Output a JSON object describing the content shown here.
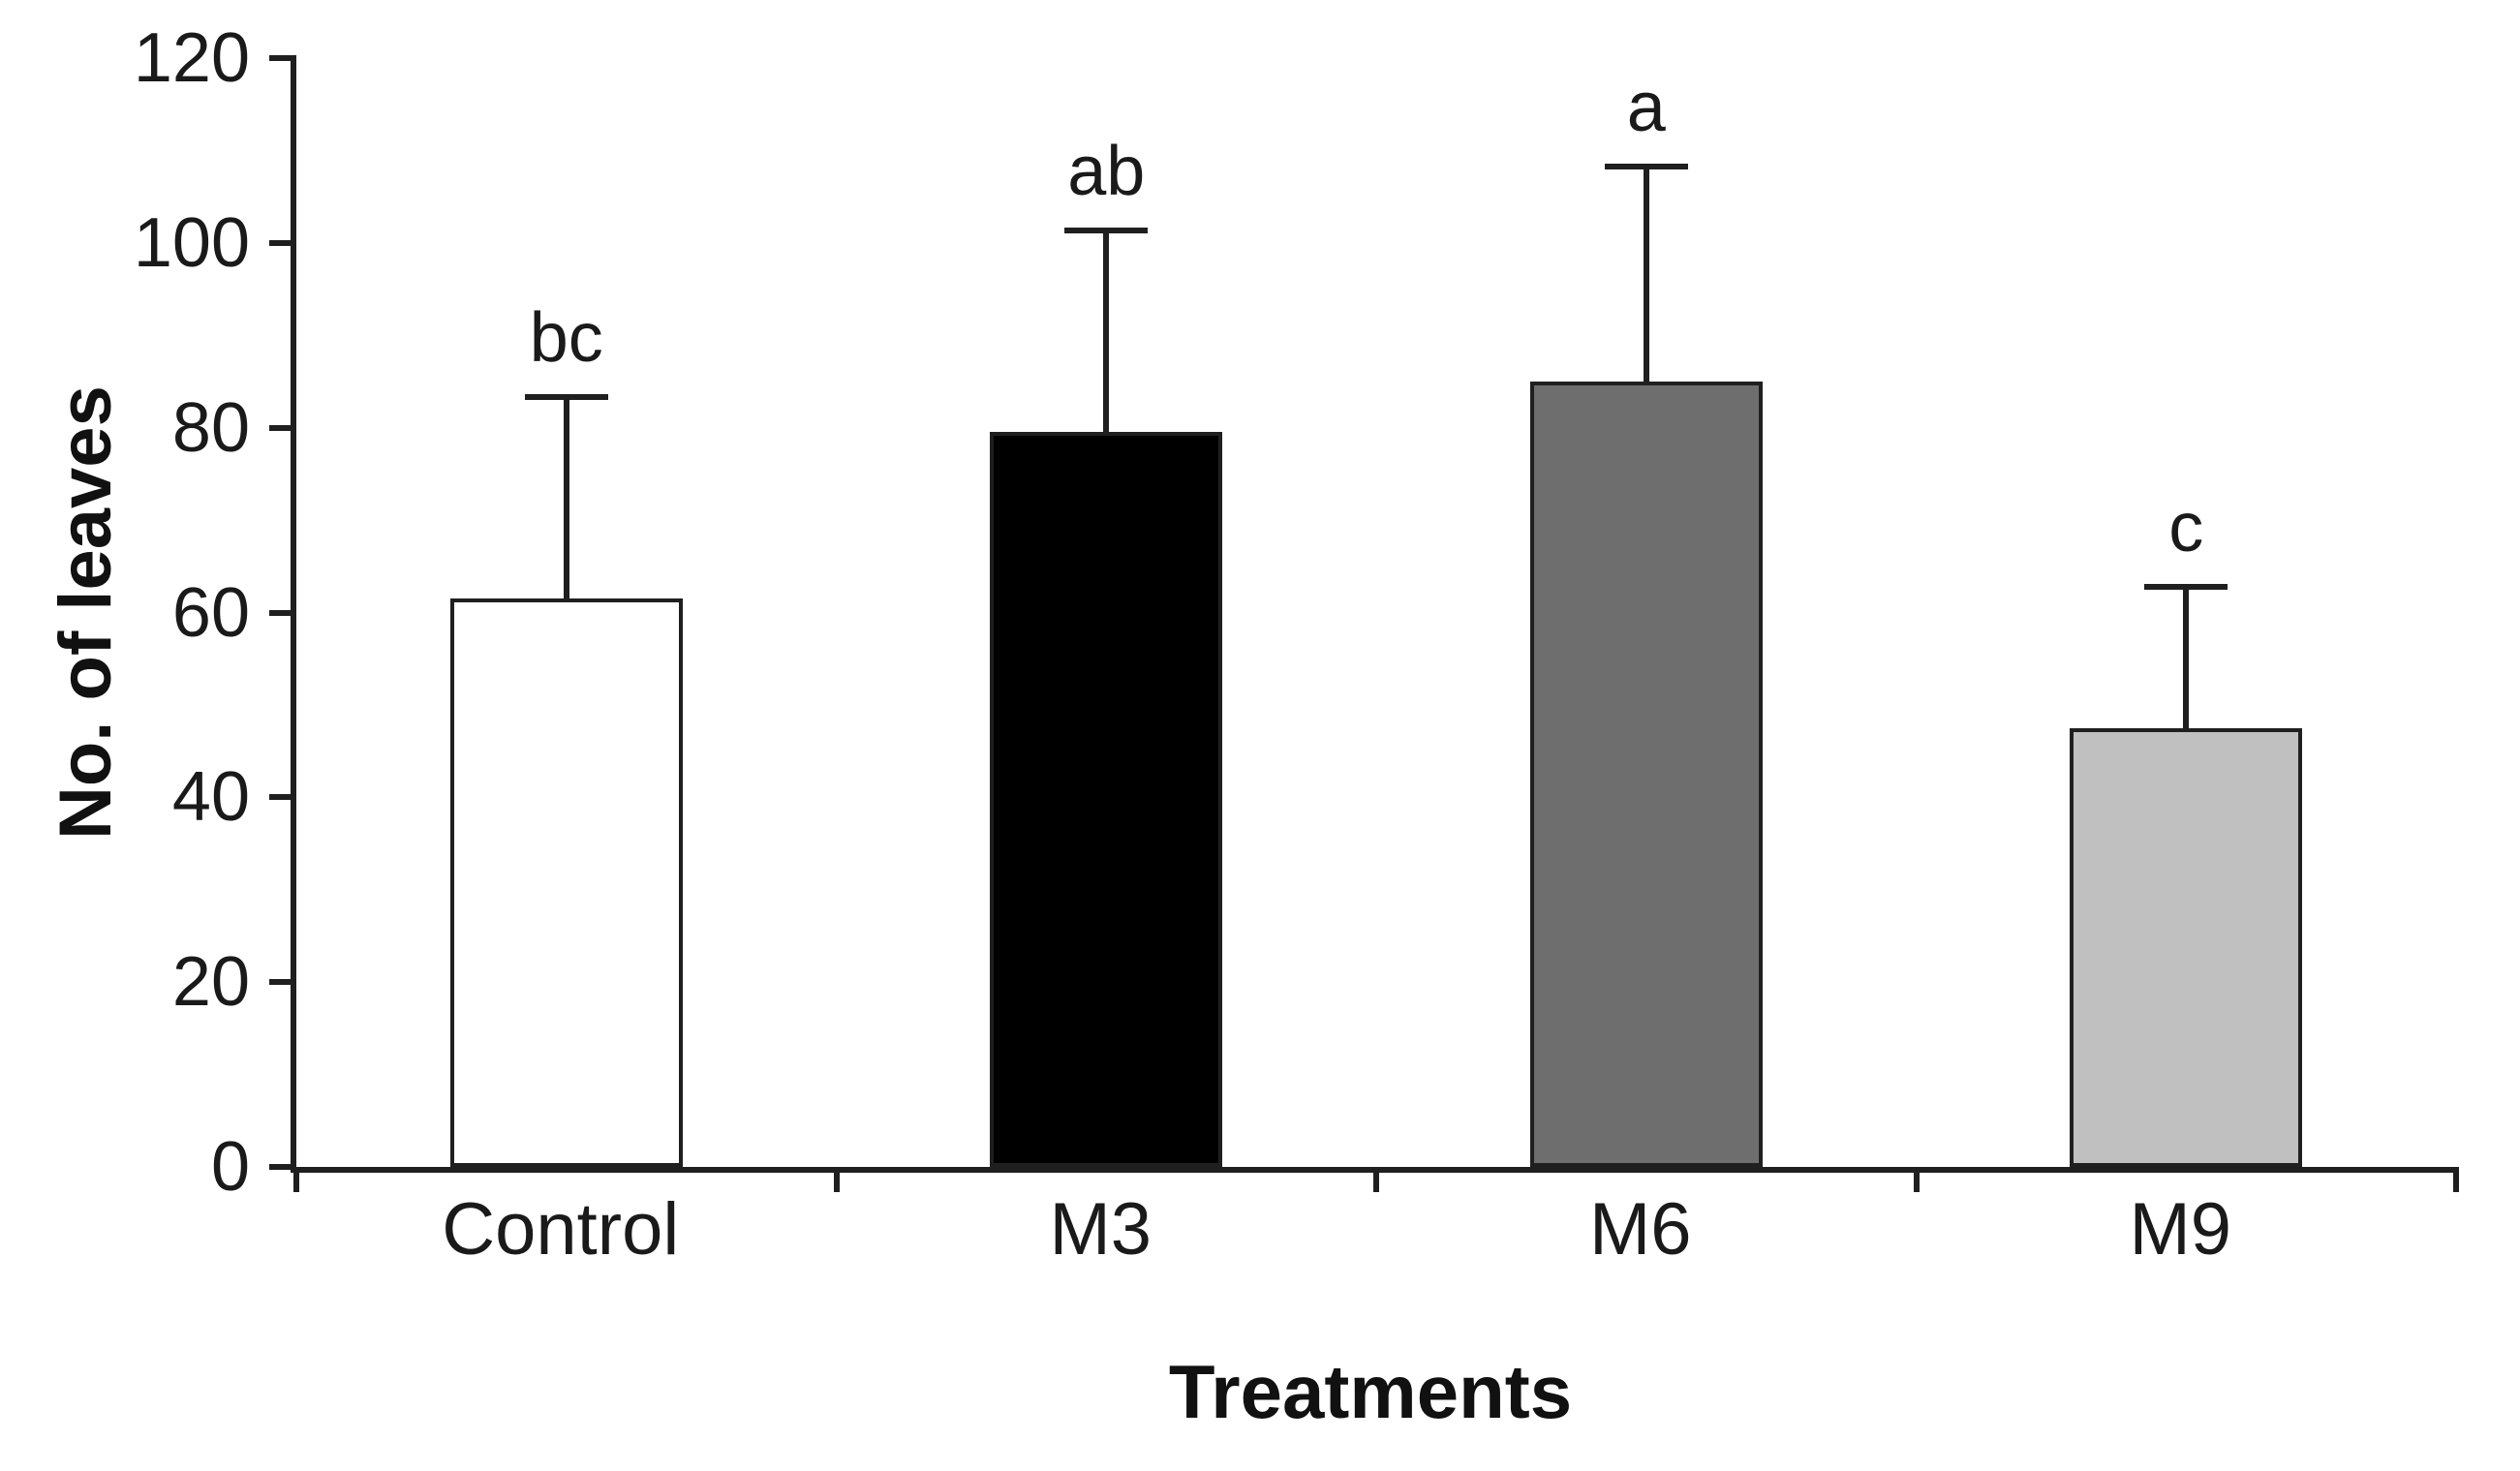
{
  "chart_data": {
    "type": "bar",
    "title": "",
    "xlabel": "Treatments",
    "ylabel": "No. of leaves",
    "ylim": [
      0,
      120
    ],
    "yticks": [
      0,
      20,
      40,
      60,
      80,
      100,
      120
    ],
    "grid": false,
    "legend": "none",
    "categories": [
      "Control",
      "M3",
      "M6",
      "M9"
    ],
    "values": [
      61.5,
      79.5,
      85,
      47.5
    ],
    "error_upper": [
      21.5,
      21.5,
      23,
      15
    ],
    "error_bar_tops": [
      83,
      101,
      108,
      62.5
    ],
    "annotations": [
      "bc",
      "ab",
      "a",
      "c"
    ],
    "bar_colors": [
      "#ffffff",
      "#000000",
      "#6e6e6e",
      "#c0c0c0"
    ],
    "bar_border_color": "#1f1f1f",
    "axis_color": "#1f1f1f"
  }
}
